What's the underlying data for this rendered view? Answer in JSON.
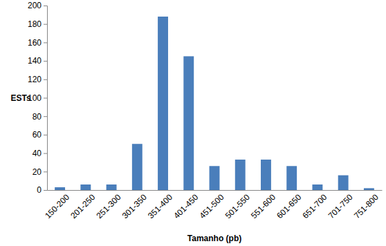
{
  "chart_data": {
    "type": "bar",
    "x_label": "Tamanho (pb)",
    "y_label": "ESTs",
    "categories": [
      "150-200",
      "201-250",
      "251-300",
      "301-350",
      "351-400",
      "401-450",
      "451-500",
      "501-550",
      "551-600",
      "601-650",
      "651-700",
      "701-750",
      "751-800"
    ],
    "values": [
      3,
      6,
      6,
      50,
      188,
      145,
      26,
      33,
      33,
      26,
      6,
      16,
      2
    ],
    "color": "#4a7ebb",
    "ylim": [
      0,
      200
    ],
    "yticks": [
      0,
      20,
      40,
      60,
      80,
      100,
      120,
      140,
      160,
      180,
      200
    ],
    "grid": false
  }
}
